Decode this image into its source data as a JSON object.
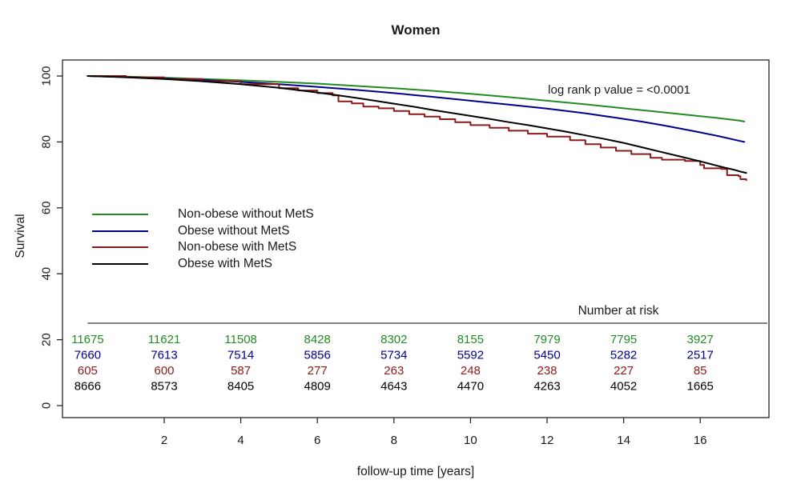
{
  "chart_data": {
    "type": "line",
    "chart_kind": "kaplan-meier-survival",
    "title": "Women",
    "xlabel": "follow-up time [years]",
    "ylabel": "Survival",
    "xlim": [
      0,
      17.5
    ],
    "ylim": [
      0,
      100
    ],
    "x_ticks": [
      2,
      4,
      6,
      8,
      10,
      12,
      14,
      16
    ],
    "y_ticks": [
      0,
      20,
      40,
      60,
      80,
      100
    ],
    "grid": false,
    "legend_position": "left-center",
    "annotation": "log rank p value = <0.0001",
    "axis_color": "#262626",
    "series": [
      {
        "name": "Non-obese without MetS",
        "color": "#228B22",
        "step": false,
        "points": [
          [
            0,
            100
          ],
          [
            1,
            99.8
          ],
          [
            2,
            99.5
          ],
          [
            3,
            99.1
          ],
          [
            4,
            98.7
          ],
          [
            5,
            98.2
          ],
          [
            6,
            97.7
          ],
          [
            7,
            97.0
          ],
          [
            8,
            96.3
          ],
          [
            9,
            95.5
          ],
          [
            10,
            94.6
          ],
          [
            11,
            93.6
          ],
          [
            12,
            92.5
          ],
          [
            13,
            91.4
          ],
          [
            14,
            90.2
          ],
          [
            15,
            89.0
          ],
          [
            16,
            87.8
          ],
          [
            16.5,
            87.2
          ],
          [
            17,
            86.5
          ],
          [
            17.15,
            86.2
          ]
        ]
      },
      {
        "name": "Obese without MetS",
        "color": "#00008B",
        "step": false,
        "points": [
          [
            0,
            100
          ],
          [
            1,
            99.7
          ],
          [
            2,
            99.3
          ],
          [
            3,
            98.8
          ],
          [
            4,
            98.2
          ],
          [
            5,
            97.5
          ],
          [
            6,
            96.7
          ],
          [
            7,
            95.8
          ],
          [
            8,
            94.8
          ],
          [
            9,
            93.7
          ],
          [
            10,
            92.5
          ],
          [
            11,
            91.3
          ],
          [
            12,
            90.1
          ],
          [
            13,
            88.7
          ],
          [
            14,
            87.0
          ],
          [
            14.5,
            86.1
          ],
          [
            15,
            85.1
          ],
          [
            15.5,
            84.0
          ],
          [
            16,
            82.9
          ],
          [
            16.5,
            81.7
          ],
          [
            17,
            80.4
          ],
          [
            17.15,
            80.0
          ]
        ]
      },
      {
        "name": "Non-obese with MetS",
        "color": "#8B1A1A",
        "step": true,
        "points": [
          [
            0,
            100
          ],
          [
            1,
            99.6
          ],
          [
            2,
            99.1
          ],
          [
            3,
            98.4
          ],
          [
            4,
            97.5
          ],
          [
            5,
            96.3
          ],
          [
            5.5,
            95.6
          ],
          [
            6,
            94.8
          ],
          [
            6.4,
            94.1
          ],
          [
            6.55,
            92.3
          ],
          [
            6.9,
            91.7
          ],
          [
            7.2,
            90.7
          ],
          [
            7.6,
            90.2
          ],
          [
            8,
            89.4
          ],
          [
            8.4,
            88.4
          ],
          [
            8.8,
            87.7
          ],
          [
            9.2,
            86.9
          ],
          [
            9.6,
            86.0
          ],
          [
            10,
            85.1
          ],
          [
            10.5,
            84.3
          ],
          [
            11,
            83.4
          ],
          [
            11.5,
            82.5
          ],
          [
            12,
            81.6
          ],
          [
            12.6,
            80.5
          ],
          [
            13,
            79.3
          ],
          [
            13.4,
            78.3
          ],
          [
            13.8,
            77.3
          ],
          [
            14.2,
            76.3
          ],
          [
            14.7,
            75.2
          ],
          [
            15,
            74.6
          ],
          [
            15.6,
            74.2
          ],
          [
            16,
            73.0
          ],
          [
            16.1,
            72.0
          ],
          [
            16.55,
            71.8
          ],
          [
            16.7,
            69.9
          ],
          [
            17,
            69.6
          ],
          [
            17.05,
            68.7
          ],
          [
            17.2,
            68.4
          ]
        ]
      },
      {
        "name": "Obese with MetS",
        "color": "#000000",
        "step": false,
        "points": [
          [
            0,
            100
          ],
          [
            1,
            99.6
          ],
          [
            2,
            99.1
          ],
          [
            3,
            98.4
          ],
          [
            4,
            97.5
          ],
          [
            5,
            96.4
          ],
          [
            6,
            95.0
          ],
          [
            6.5,
            94.2
          ],
          [
            7,
            93.4
          ],
          [
            7.5,
            92.5
          ],
          [
            8,
            91.6
          ],
          [
            8.5,
            90.7
          ],
          [
            9,
            89.7
          ],
          [
            9.5,
            88.8
          ],
          [
            10,
            87.9
          ],
          [
            10.5,
            87.0
          ],
          [
            11,
            86.0
          ],
          [
            11.5,
            85.1
          ],
          [
            12,
            84.1
          ],
          [
            12.5,
            83.1
          ],
          [
            13,
            82.0
          ],
          [
            13.5,
            80.9
          ],
          [
            14,
            79.7
          ],
          [
            14.5,
            78.3
          ],
          [
            15,
            76.9
          ],
          [
            15.5,
            75.5
          ],
          [
            16,
            74.1
          ],
          [
            16.3,
            73.2
          ],
          [
            16.6,
            72.3
          ],
          [
            16.9,
            71.5
          ],
          [
            17.05,
            71.0
          ],
          [
            17.2,
            70.6
          ]
        ]
      }
    ],
    "number_at_risk": {
      "label": "Number at risk",
      "time_points": [
        0,
        2,
        4,
        6,
        8,
        10,
        12,
        14,
        16
      ],
      "rows": [
        {
          "name": "Non-obese without MetS",
          "color": "#228B22",
          "values": [
            11675,
            11621,
            11508,
            8428,
            8302,
            8155,
            7979,
            7795,
            3927
          ]
        },
        {
          "name": "Obese without MetS",
          "color": "#00008B",
          "values": [
            7660,
            7613,
            7514,
            5856,
            5734,
            5592,
            5450,
            5282,
            2517
          ]
        },
        {
          "name": "Non-obese with MetS",
          "color": "#8B1A1A",
          "values": [
            605,
            600,
            587,
            277,
            263,
            248,
            238,
            227,
            85
          ]
        },
        {
          "name": "Obese with MetS",
          "color": "#000000",
          "values": [
            8666,
            8573,
            8405,
            4809,
            4643,
            4470,
            4263,
            4052,
            1665
          ]
        }
      ]
    }
  }
}
